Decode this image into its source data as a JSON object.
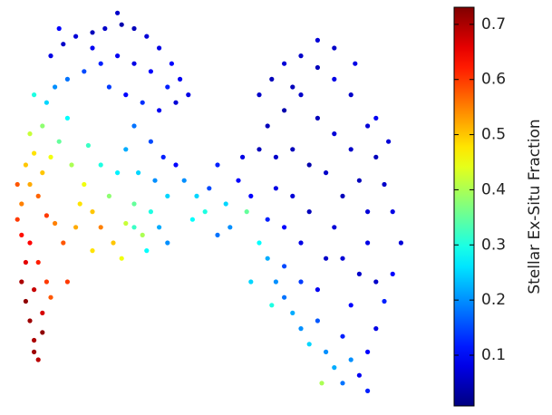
{
  "chart_data": {
    "type": "scatter",
    "x": [
      3,
      4,
      5,
      6,
      7,
      4,
      6,
      8,
      5,
      7,
      3,
      8,
      6,
      9,
      10,
      2,
      3,
      5,
      4,
      7,
      9,
      6,
      11,
      13,
      14,
      2,
      8,
      10,
      5,
      8,
      12,
      15,
      18,
      20,
      22,
      17,
      25,
      28,
      24,
      19,
      14,
      9,
      6,
      11,
      22,
      26,
      30,
      32,
      27,
      20,
      16,
      10,
      13,
      16,
      20,
      23,
      27,
      30,
      33,
      36,
      39,
      41,
      38,
      34,
      30,
      26,
      22,
      18,
      14,
      24,
      28,
      32,
      36,
      40,
      12,
      26,
      43,
      20,
      30,
      34,
      37,
      35,
      31,
      28,
      38,
      34,
      30,
      40,
      36,
      33,
      38,
      42,
      45,
      48,
      50,
      52,
      55,
      47,
      53,
      57,
      44,
      56,
      50,
      58,
      60,
      63,
      66,
      70,
      74,
      78,
      82,
      86,
      88,
      90,
      92,
      94,
      92,
      90,
      88,
      86,
      84,
      62,
      66,
      70,
      74,
      78,
      82,
      84,
      86,
      86,
      84,
      82,
      80,
      64,
      68,
      72,
      76,
      80,
      78,
      76,
      74,
      68,
      72,
      70,
      66,
      64,
      62,
      74,
      68,
      78,
      83,
      88,
      91,
      60,
      80,
      88,
      62,
      64,
      66,
      68,
      70,
      72,
      74,
      76,
      78,
      80,
      66,
      60,
      63,
      70,
      75,
      82,
      86,
      58
    ],
    "values": [
      30,
      25,
      20,
      15,
      10,
      35,
      28,
      22,
      40,
      35,
      42,
      17,
      12,
      30,
      26,
      46,
      50,
      55,
      60,
      52,
      47,
      63,
      45,
      40,
      30,
      55,
      58,
      62,
      68,
      70,
      66,
      60,
      55,
      48,
      44,
      50,
      40,
      45,
      52,
      65,
      72,
      76,
      78,
      80,
      60,
      58,
      50,
      42,
      36,
      38,
      44,
      88,
      91,
      93,
      94,
      95,
      96,
      95,
      93,
      90,
      86,
      82,
      80,
      84,
      86,
      88,
      86,
      84,
      82,
      80,
      78,
      76,
      74,
      76,
      95,
      99,
      78,
      90,
      70,
      66,
      62,
      56,
      58,
      64,
      52,
      48,
      44,
      60,
      44,
      38,
      40,
      56,
      52,
      54,
      60,
      50,
      56,
      48,
      44,
      48,
      46,
      62,
      42,
      52,
      78,
      82,
      86,
      88,
      85,
      82,
      78,
      70,
      62,
      55,
      48,
      40,
      32,
      25,
      18,
      12,
      6,
      70,
      74,
      78,
      72,
      68,
      64,
      56,
      48,
      40,
      32,
      24,
      16,
      62,
      64,
      60,
      58,
      52,
      44,
      36,
      28,
      52,
      48,
      40,
      44,
      54,
      46,
      92,
      80,
      90,
      86,
      72,
      66,
      64,
      36,
      30,
      36,
      30,
      26,
      22,
      18,
      14,
      20,
      12,
      8,
      4,
      34,
      40,
      24,
      30,
      4,
      10,
      2,
      30
    ],
    "color_values": [
      0.7,
      0.72,
      0.71,
      0.7,
      0.69,
      0.66,
      0.68,
      0.67,
      0.64,
      0.62,
      0.63,
      0.72,
      0.71,
      0.6,
      0.58,
      0.6,
      0.55,
      0.52,
      0.5,
      0.57,
      0.6,
      0.48,
      0.55,
      0.58,
      0.6,
      0.58,
      0.5,
      0.45,
      0.42,
      0.38,
      0.35,
      0.4,
      0.45,
      0.5,
      0.55,
      0.48,
      0.5,
      0.42,
      0.38,
      0.32,
      0.28,
      0.25,
      0.3,
      0.2,
      0.3,
      0.27,
      0.35,
      0.4,
      0.45,
      0.48,
      0.52,
      0.08,
      0.06,
      0.07,
      0.05,
      0.06,
      0.04,
      0.05,
      0.07,
      0.08,
      0.1,
      0.09,
      0.12,
      0.1,
      0.08,
      0.09,
      0.12,
      0.15,
      0.18,
      0.14,
      0.1,
      0.13,
      0.09,
      0.07,
      0.1,
      0.06,
      0.08,
      0.09,
      0.18,
      0.15,
      0.12,
      0.2,
      0.25,
      0.22,
      0.25,
      0.3,
      0.32,
      0.1,
      0.22,
      0.28,
      0.2,
      0.2,
      0.25,
      0.15,
      0.12,
      0.25,
      0.1,
      0.3,
      0.2,
      0.35,
      0.28,
      0.08,
      0.18,
      0.1,
      0.06,
      0.05,
      0.07,
      0.06,
      0.05,
      0.08,
      0.06,
      0.07,
      0.05,
      0.06,
      0.08,
      0.07,
      0.1,
      0.12,
      0.08,
      0.1,
      0.09,
      0.05,
      0.04,
      0.06,
      0.05,
      0.07,
      0.06,
      0.05,
      0.07,
      0.08,
      0.06,
      0.1,
      0.12,
      0.06,
      0.05,
      0.04,
      0.06,
      0.05,
      0.07,
      0.06,
      0.09,
      0.07,
      0.05,
      0.08,
      0.1,
      0.08,
      0.12,
      0.07,
      0.05,
      0.06,
      0.08,
      0.09,
      0.07,
      0.05,
      0.07,
      0.06,
      0.22,
      0.2,
      0.18,
      0.22,
      0.2,
      0.25,
      0.16,
      0.2,
      0.22,
      0.18,
      0.15,
      0.28,
      0.3,
      0.14,
      0.4,
      0.2,
      0.12,
      0.25
    ],
    "xlim": [
      0,
      100
    ],
    "ylim": [
      0,
      100
    ],
    "colormap": "jet",
    "clim": [
      0.008,
      0.731
    ],
    "cbar_ticks": [
      0.1,
      0.2,
      0.3,
      0.4,
      0.5,
      0.6,
      0.7
    ],
    "cbar_label": "Stellar Ex-Situ Fraction"
  }
}
